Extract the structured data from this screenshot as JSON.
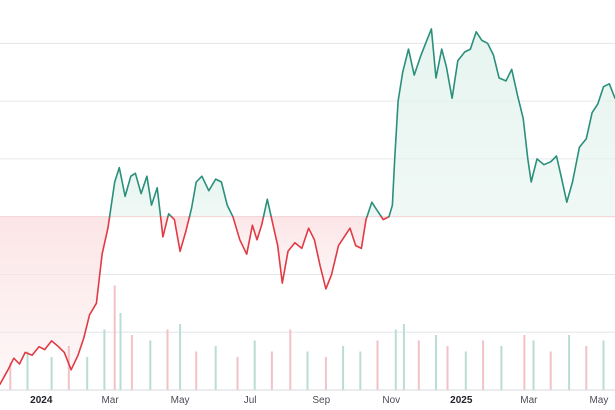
{
  "chart_data": {
    "type": "area",
    "baseline_value": 100,
    "ylim": [
      40,
      175
    ],
    "xlim": [
      "2023-11-26",
      "2025-05-15"
    ],
    "grid": true,
    "title": "",
    "xlabel": "",
    "ylabel": "",
    "colors": {
      "below_baseline_line": "#e03a44",
      "above_baseline_line": "#2a8f7b",
      "below_fill": "#fbe1e3",
      "above_fill": "#e4f3ee",
      "volume_up": "#b9ddd3",
      "volume_down": "#f2c2c6",
      "baseline": "#f6d4d7",
      "grid": "#e3e6ea"
    },
    "x_ticks": [
      {
        "date": "2024-01-01",
        "label": "2024",
        "bold": true
      },
      {
        "date": "2024-03-01",
        "label": "Mar",
        "bold": false
      },
      {
        "date": "2024-05-01",
        "label": "May",
        "bold": false
      },
      {
        "date": "2024-07-01",
        "label": "Jul",
        "bold": false
      },
      {
        "date": "2024-09-01",
        "label": "Sep",
        "bold": false
      },
      {
        "date": "2024-11-01",
        "label": "Nov",
        "bold": false
      },
      {
        "date": "2025-01-01",
        "label": "2025",
        "bold": true
      },
      {
        "date": "2025-03-01",
        "label": "Mar",
        "bold": false
      },
      {
        "date": "2025-05-01",
        "label": "May",
        "bold": false
      }
    ],
    "series": [
      {
        "values": [
          [
            "2023-11-26",
            42
          ],
          [
            "2023-12-03",
            47
          ],
          [
            "2023-12-08",
            51
          ],
          [
            "2023-12-13",
            49
          ],
          [
            "2023-12-18",
            53
          ],
          [
            "2023-12-24",
            52
          ],
          [
            "2023-12-30",
            55
          ],
          [
            "2024-01-04",
            54
          ],
          [
            "2024-01-10",
            57
          ],
          [
            "2024-01-16",
            55
          ],
          [
            "2024-01-21",
            53
          ],
          [
            "2024-01-27",
            47
          ],
          [
            "2024-02-02",
            52
          ],
          [
            "2024-02-07",
            58
          ],
          [
            "2024-02-12",
            66
          ],
          [
            "2024-02-18",
            70
          ],
          [
            "2024-02-23",
            87
          ],
          [
            "2024-02-28",
            96
          ],
          [
            "2024-03-05",
            112
          ],
          [
            "2024-03-09",
            117
          ],
          [
            "2024-03-14",
            107
          ],
          [
            "2024-03-19",
            114
          ],
          [
            "2024-03-23",
            115
          ],
          [
            "2024-03-28",
            108
          ],
          [
            "2024-04-02",
            114
          ],
          [
            "2024-04-06",
            104
          ],
          [
            "2024-04-11",
            110
          ],
          [
            "2024-04-16",
            93
          ],
          [
            "2024-04-21",
            101
          ],
          [
            "2024-04-26",
            99
          ],
          [
            "2024-05-01",
            88
          ],
          [
            "2024-05-06",
            95
          ],
          [
            "2024-05-11",
            103
          ],
          [
            "2024-05-15",
            112
          ],
          [
            "2024-05-20",
            114
          ],
          [
            "2024-05-26",
            109
          ],
          [
            "2024-06-01",
            113
          ],
          [
            "2024-06-06",
            112
          ],
          [
            "2024-06-11",
            104
          ],
          [
            "2024-06-16",
            100
          ],
          [
            "2024-06-22",
            92
          ],
          [
            "2024-06-28",
            87
          ],
          [
            "2024-07-03",
            97
          ],
          [
            "2024-07-07",
            92
          ],
          [
            "2024-07-11",
            97
          ],
          [
            "2024-07-16",
            106
          ],
          [
            "2024-07-21",
            97
          ],
          [
            "2024-07-25",
            90
          ],
          [
            "2024-07-29",
            77
          ],
          [
            "2024-08-03",
            88
          ],
          [
            "2024-08-09",
            91
          ],
          [
            "2024-08-15",
            89
          ],
          [
            "2024-08-21",
            96
          ],
          [
            "2024-08-26",
            92
          ],
          [
            "2024-08-31",
            83
          ],
          [
            "2024-09-05",
            75
          ],
          [
            "2024-09-10",
            80
          ],
          [
            "2024-09-16",
            90
          ],
          [
            "2024-09-21",
            93
          ],
          [
            "2024-09-26",
            96
          ],
          [
            "2024-10-01",
            90
          ],
          [
            "2024-10-06",
            89
          ],
          [
            "2024-10-10",
            99
          ],
          [
            "2024-10-15",
            105
          ],
          [
            "2024-10-20",
            102
          ],
          [
            "2024-10-25",
            99
          ],
          [
            "2024-10-30",
            100
          ],
          [
            "2024-11-02",
            104
          ],
          [
            "2024-11-04",
            120
          ],
          [
            "2024-11-07",
            140
          ],
          [
            "2024-11-11",
            150
          ],
          [
            "2024-11-16",
            158
          ],
          [
            "2024-11-21",
            149
          ],
          [
            "2024-11-27",
            156
          ],
          [
            "2024-12-02",
            161
          ],
          [
            "2024-12-06",
            165
          ],
          [
            "2024-12-10",
            148
          ],
          [
            "2024-12-15",
            158
          ],
          [
            "2024-12-19",
            152
          ],
          [
            "2024-12-24",
            141
          ],
          [
            "2024-12-29",
            154
          ],
          [
            "2025-01-04",
            157
          ],
          [
            "2025-01-09",
            158
          ],
          [
            "2025-01-14",
            164
          ],
          [
            "2025-01-19",
            161
          ],
          [
            "2025-01-24",
            160
          ],
          [
            "2025-01-29",
            156
          ],
          [
            "2025-02-03",
            148
          ],
          [
            "2025-02-09",
            147
          ],
          [
            "2025-02-14",
            151
          ],
          [
            "2025-02-19",
            142
          ],
          [
            "2025-02-24",
            134
          ],
          [
            "2025-02-28",
            120
          ],
          [
            "2025-03-03",
            112
          ],
          [
            "2025-03-08",
            120
          ],
          [
            "2025-03-14",
            118
          ],
          [
            "2025-03-20",
            119
          ],
          [
            "2025-03-25",
            121
          ],
          [
            "2025-03-29",
            114
          ],
          [
            "2025-04-03",
            105
          ],
          [
            "2025-04-08",
            112
          ],
          [
            "2025-04-14",
            124
          ],
          [
            "2025-04-20",
            127
          ],
          [
            "2025-04-25",
            136
          ],
          [
            "2025-04-30",
            139
          ],
          [
            "2025-05-05",
            145
          ],
          [
            "2025-05-10",
            146
          ],
          [
            "2025-05-15",
            141
          ]
        ]
      }
    ],
    "volume": [
      [
        "2023-12-05",
        0.25,
        "down"
      ],
      [
        "2023-12-20",
        0.35,
        "up"
      ],
      [
        "2024-01-10",
        0.3,
        "up"
      ],
      [
        "2024-01-25",
        0.4,
        "down"
      ],
      [
        "2024-02-10",
        0.3,
        "up"
      ],
      [
        "2024-02-25",
        0.55,
        "up"
      ],
      [
        "2024-03-05",
        0.95,
        "down"
      ],
      [
        "2024-03-10",
        0.7,
        "up"
      ],
      [
        "2024-03-20",
        0.5,
        "down"
      ],
      [
        "2024-04-05",
        0.45,
        "up"
      ],
      [
        "2024-04-20",
        0.55,
        "down"
      ],
      [
        "2024-05-01",
        0.6,
        "up"
      ],
      [
        "2024-05-15",
        0.35,
        "down"
      ],
      [
        "2024-06-01",
        0.4,
        "up"
      ],
      [
        "2024-06-20",
        0.3,
        "down"
      ],
      [
        "2024-07-05",
        0.45,
        "up"
      ],
      [
        "2024-07-20",
        0.35,
        "down"
      ],
      [
        "2024-08-05",
        0.55,
        "down"
      ],
      [
        "2024-08-20",
        0.35,
        "up"
      ],
      [
        "2024-09-05",
        0.3,
        "down"
      ],
      [
        "2024-09-20",
        0.4,
        "up"
      ],
      [
        "2024-10-05",
        0.35,
        "up"
      ],
      [
        "2024-10-20",
        0.45,
        "down"
      ],
      [
        "2024-11-05",
        0.55,
        "up"
      ],
      [
        "2024-11-12",
        0.6,
        "up"
      ],
      [
        "2024-11-25",
        0.45,
        "down"
      ],
      [
        "2024-12-10",
        0.5,
        "up"
      ],
      [
        "2024-12-20",
        0.4,
        "down"
      ],
      [
        "2025-01-05",
        0.35,
        "up"
      ],
      [
        "2025-01-20",
        0.45,
        "down"
      ],
      [
        "2025-02-05",
        0.4,
        "up"
      ],
      [
        "2025-02-25",
        0.5,
        "down"
      ],
      [
        "2025-03-05",
        0.45,
        "up"
      ],
      [
        "2025-03-20",
        0.35,
        "down"
      ],
      [
        "2025-04-05",
        0.5,
        "up"
      ],
      [
        "2025-04-20",
        0.4,
        "down"
      ],
      [
        "2025-05-05",
        0.45,
        "up"
      ]
    ]
  }
}
